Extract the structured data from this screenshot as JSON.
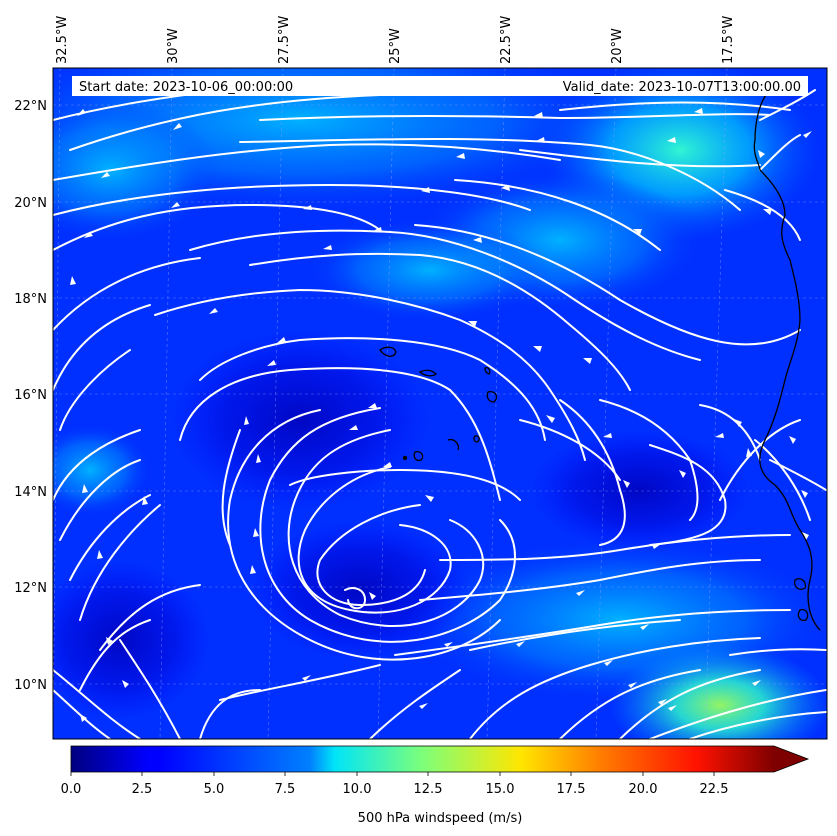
{
  "map": {
    "start_date_label": "Start date: 2023-10-06_00:00:00",
    "valid_date_label": "Valid_date: 2023-10-07T13:00:00.00",
    "field": "500 hPa windspeed",
    "lon_labels": [
      "32.5°W",
      "30°W",
      "27.5°W",
      "25°W",
      "22.5°W",
      "20°W",
      "17.5°W"
    ],
    "lat_labels": [
      "22°N",
      "20°N",
      "18°N",
      "16°N",
      "14°N",
      "12°N",
      "10°N"
    ],
    "lon_range": [
      -32.5,
      -15.0
    ],
    "lat_range": [
      9.0,
      22.8
    ],
    "colors": {
      "streamline": "#ffffff",
      "coastline": "#000000",
      "background_field": "#0024ff"
    }
  },
  "colorbar": {
    "label": "500 hPa windspeed (m/s)",
    "ticks": [
      "0.0",
      "2.5",
      "5.0",
      "7.5",
      "10.0",
      "12.5",
      "15.0",
      "17.5",
      "20.0",
      "22.5"
    ],
    "range": [
      0,
      25
    ],
    "extend": "max",
    "colormap": "jet"
  }
}
